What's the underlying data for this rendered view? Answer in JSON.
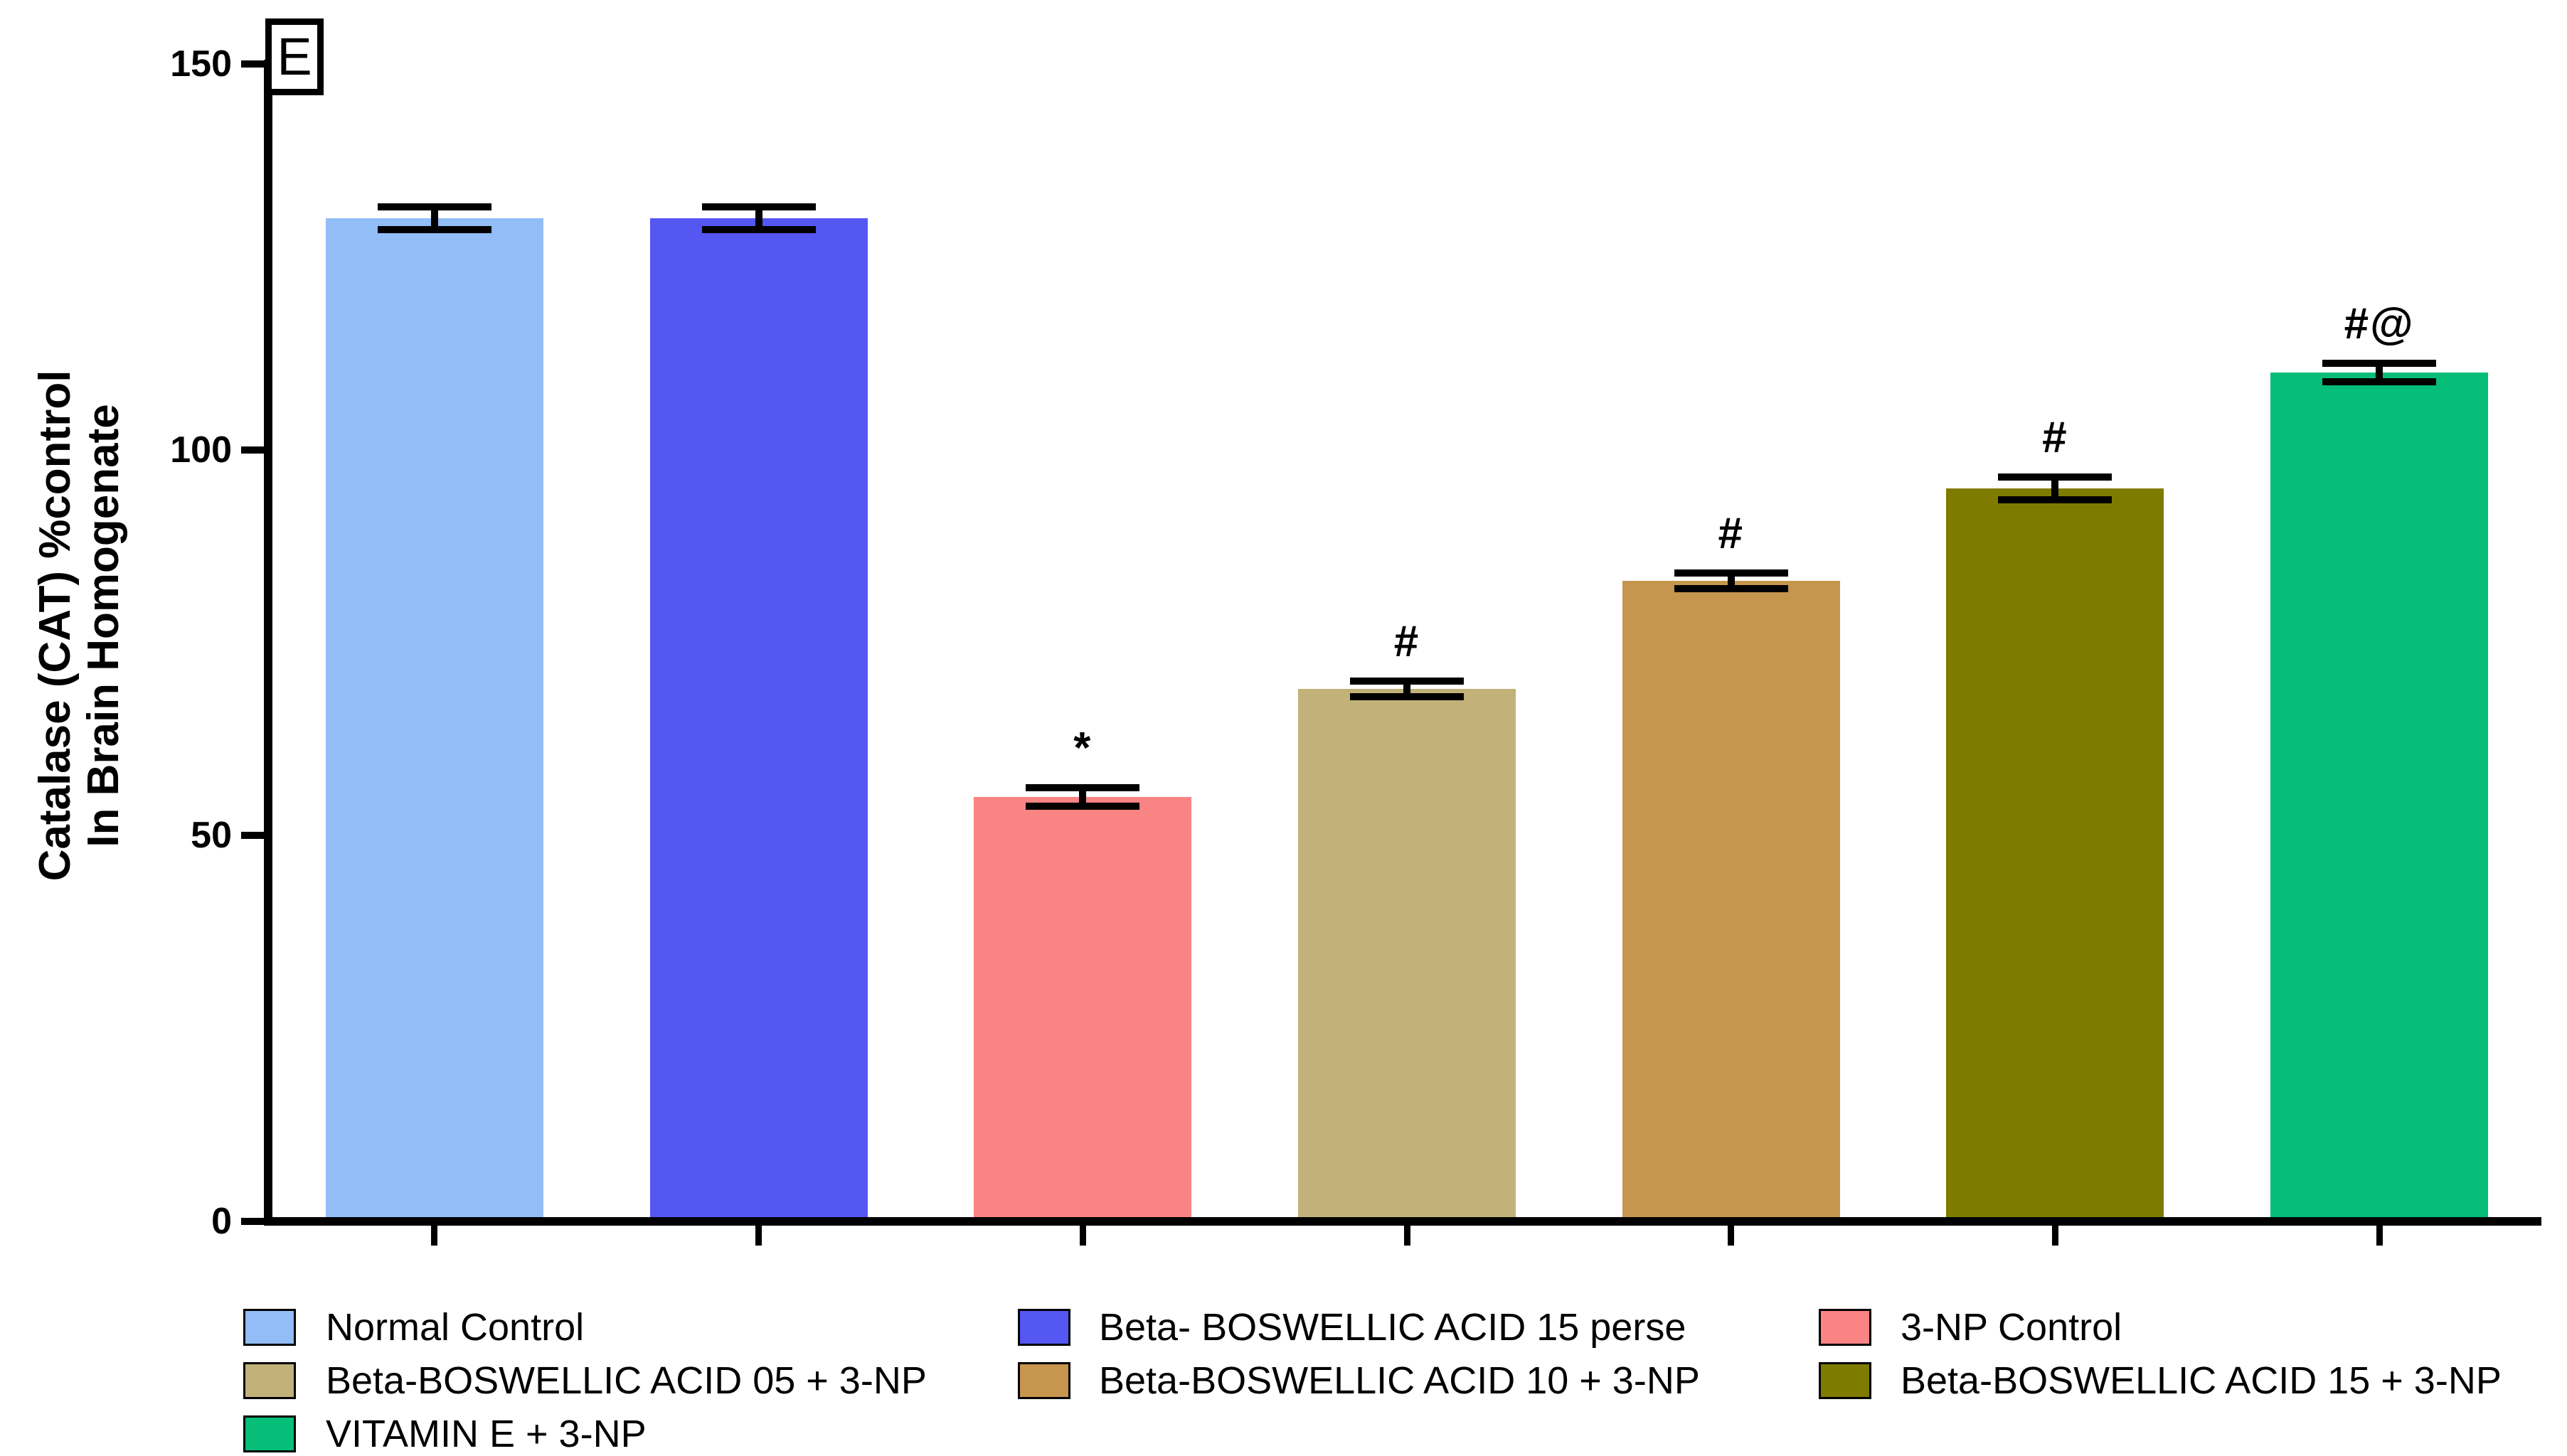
{
  "panel_label": "E",
  "y_axis": {
    "title_line1": "Catalase (CAT) %control",
    "title_line2": "In Brain Homogenate",
    "tick_values": [
      0,
      50,
      100,
      150
    ]
  },
  "chart_data": {
    "type": "bar",
    "title": "",
    "xlabel": "",
    "ylabel": "Catalase (CAT) %control In Brain Homogenate",
    "ylim": [
      0,
      150
    ],
    "yticks": [
      0,
      50,
      100,
      150
    ],
    "grid": false,
    "legend_position": "bottom",
    "categories": [
      "Normal Control",
      "Beta- BOSWELLIC ACID 15 perse",
      "3-NP Control",
      "Beta-BOSWELLIC ACID 05 + 3-NP",
      "Beta-BOSWELLIC ACID 10 + 3-NP",
      "Beta-BOSWELLIC ACID 15 + 3-NP",
      "VITAMIN E + 3-NP"
    ],
    "values": [
      130,
      130,
      55,
      69,
      83,
      95,
      110
    ],
    "errors": [
      1.5,
      1.5,
      1.2,
      1.0,
      1.0,
      1.5,
      1.2
    ],
    "bar_colors": [
      "#92BDF7",
      "#5457F2",
      "#FA8383",
      "#C2B179",
      "#C6954E",
      "#7F7B00",
      "#06BE78"
    ],
    "annotations": [
      "",
      "",
      "*",
      "#",
      "#",
      "#",
      "#@"
    ]
  },
  "legend": {
    "columns": [
      {
        "items": [
          {
            "label": "Normal Control",
            "color": "#92BDF7"
          },
          {
            "label": "Beta-BOSWELLIC ACID 05 + 3-NP",
            "color": "#C2B179"
          },
          {
            "label": "VITAMIN E + 3-NP",
            "color": "#06BE78"
          }
        ]
      },
      {
        "items": [
          {
            "label": "Beta- BOSWELLIC ACID 15 perse",
            "color": "#5457F2"
          },
          {
            "label": "Beta-BOSWELLIC ACID 10 + 3-NP",
            "color": "#C6954E"
          }
        ]
      },
      {
        "items": [
          {
            "label": "3-NP Control",
            "color": "#FA8383"
          },
          {
            "label": "Beta-BOSWELLIC ACID 15 + 3-NP",
            "color": "#7F7B00"
          }
        ]
      }
    ]
  }
}
